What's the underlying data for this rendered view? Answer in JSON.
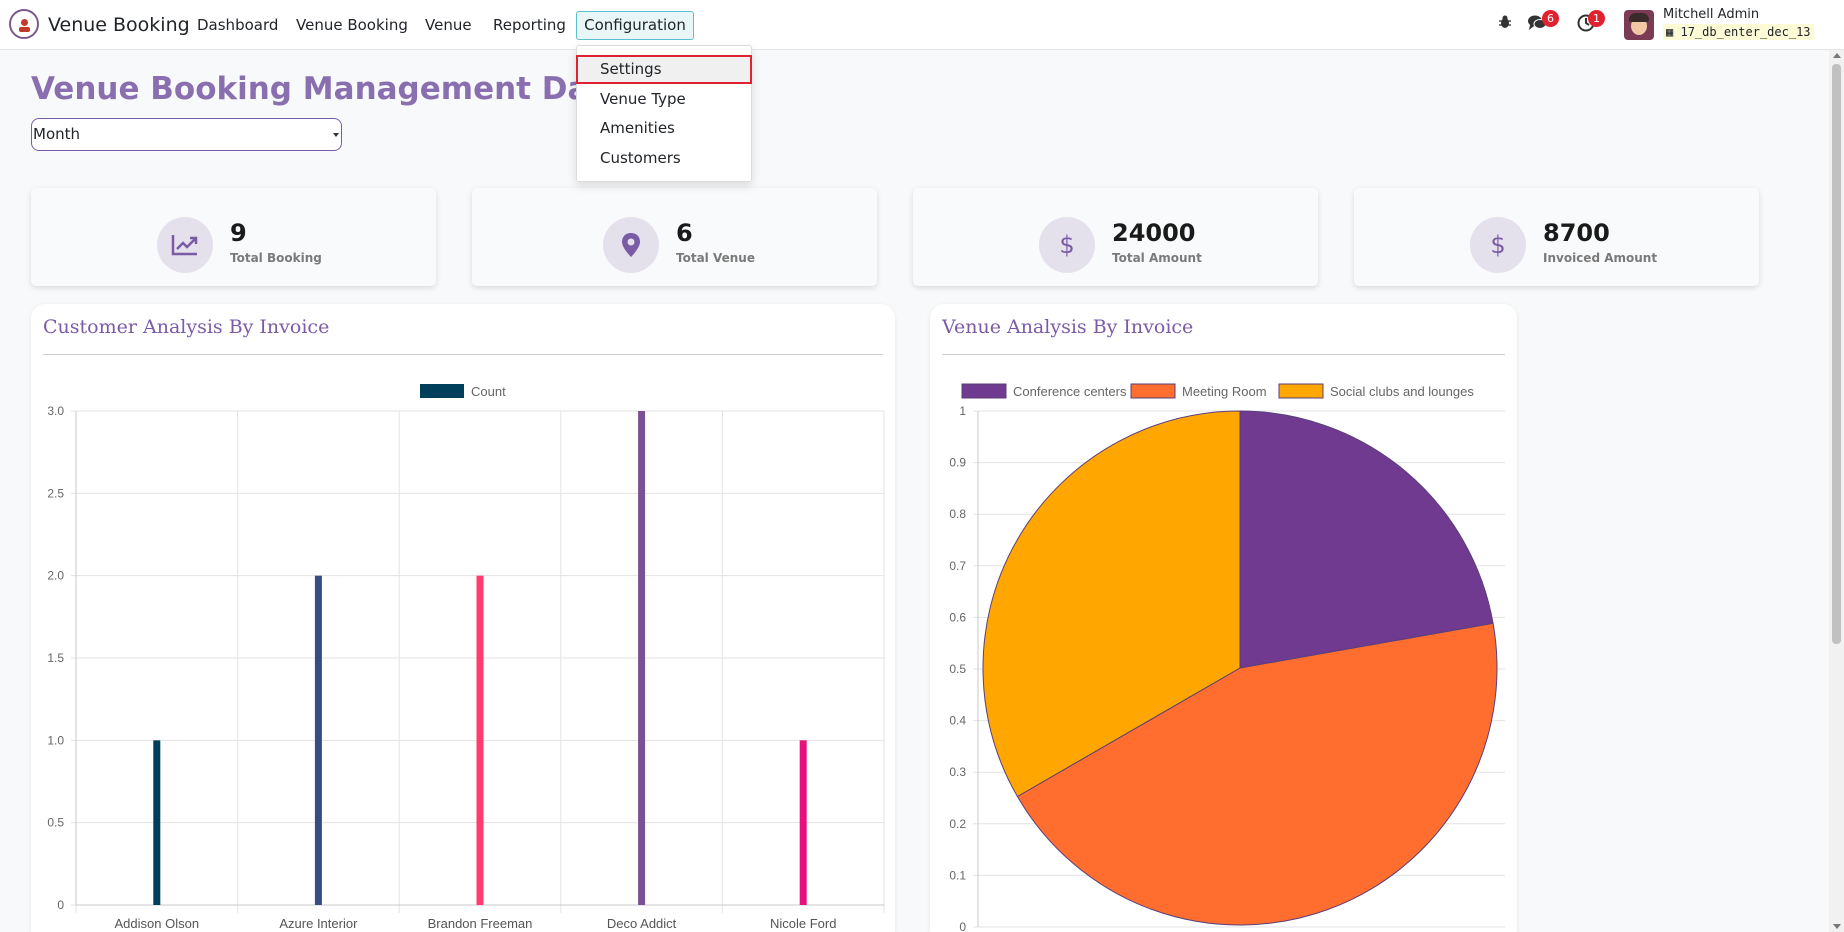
{
  "app": {
    "brand": "Venue Booking"
  },
  "nav": {
    "items": [
      "Dashboard",
      "Venue Booking",
      "Venue",
      "Reporting"
    ],
    "active": "Configuration"
  },
  "systray": {
    "messages_count": "6",
    "activities_count": "1"
  },
  "user": {
    "name": "Mitchell Admin",
    "db": "17_db_enter_dec_13"
  },
  "dropdown": {
    "items": [
      "Settings",
      "Venue Type",
      "Amenities",
      "Customers"
    ]
  },
  "page": {
    "title": "Venue Booking Management Dashboard",
    "period": "Month"
  },
  "cards": [
    {
      "value": "9",
      "label": "Total Booking",
      "icon": "chart-line-icon"
    },
    {
      "value": "6",
      "label": "Total Venue",
      "icon": "map-pin-icon"
    },
    {
      "value": "24000",
      "label": "Total Amount",
      "icon": "dollar-icon"
    },
    {
      "value": "8700",
      "label": "Invoiced Amount",
      "icon": "dollar-icon"
    }
  ],
  "panels": {
    "customer": {
      "title": "Customer Analysis By Invoice"
    },
    "venue": {
      "title": "Venue Analysis By Invoice"
    }
  },
  "colors": {
    "accent": "#7a5ba6",
    "highlight": "#e0212f"
  },
  "chart_data": [
    {
      "type": "bar",
      "categories": [
        "Addison Olson",
        "Azure Interior",
        "Brandon Freeman",
        "Deco Addict",
        "Nicole Ford"
      ],
      "series": [
        {
          "name": "Count",
          "values": [
            1,
            2,
            2,
            3,
            1
          ]
        }
      ],
      "bar_colors": [
        "#003f5c",
        "#374c80",
        "#ff3c6e",
        "#7a5195",
        "#e8107a"
      ],
      "legend_color": "#003f5c",
      "ylim": [
        0,
        3
      ],
      "yticks": [
        "0",
        "0.5",
        "1.0",
        "1.5",
        "2.0",
        "2.5",
        "3.0"
      ],
      "legend": "top",
      "grid": true
    },
    {
      "type": "pie",
      "labels": [
        "Conference centers",
        "Meeting Room",
        "Social clubs and lounges"
      ],
      "values": [
        2,
        4,
        3
      ],
      "colors": [
        "#6f3a8f",
        "#ff6e2e",
        "#ffa600"
      ],
      "yticks": [
        "0",
        "0.1",
        "0.2",
        "0.3",
        "0.4",
        "0.5",
        "0.6",
        "0.7",
        "0.8",
        "0.9",
        "1"
      ],
      "legend": "top",
      "grid": true
    }
  ]
}
